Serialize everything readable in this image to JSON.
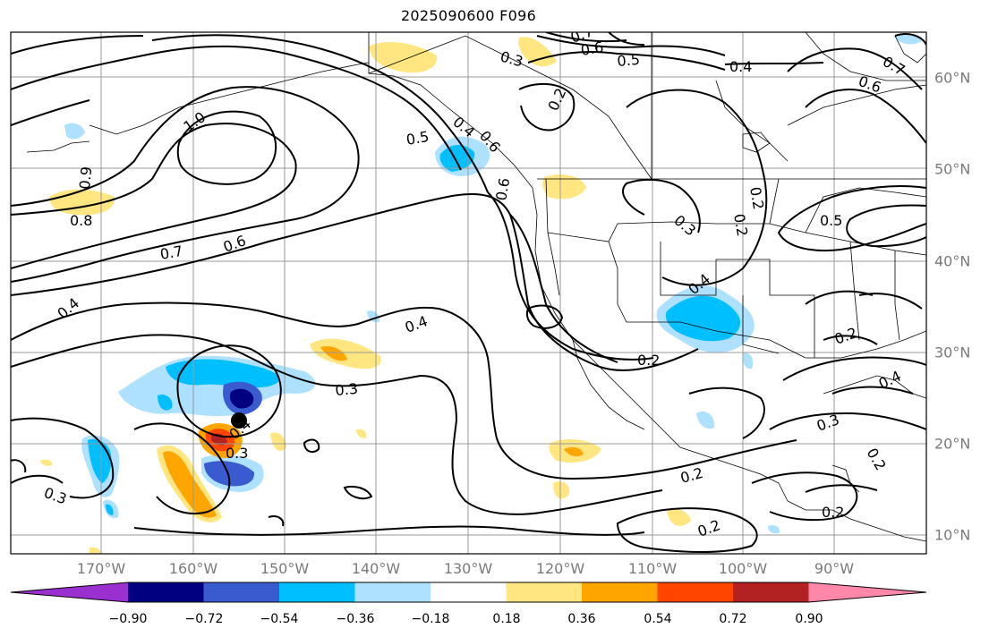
{
  "title": "2025090600 F096",
  "lon_labels": [
    "170°W",
    "160°W",
    "150°W",
    "140°W",
    "130°W",
    "120°W",
    "110°W",
    "100°W",
    "90°W"
  ],
  "lat_labels": [
    "60°N",
    "50°N",
    "40°N",
    "30°N",
    "20°N",
    "10°N"
  ],
  "colorbar": {
    "ticks": [
      "−0.90",
      "−0.72",
      "−0.54",
      "−0.36",
      "−0.18",
      "0.18",
      "0.36",
      "0.54",
      "0.72",
      "0.90"
    ],
    "colors": [
      "#9b30d0",
      "#000080",
      "#3a5bd0",
      "#00bfff",
      "#aee1ff",
      "#ffffff",
      "#ffe680",
      "#ffa500",
      "#ff4500",
      "#b22222",
      "#ff88aa"
    ]
  },
  "contour_labels": [
    "0.7",
    "0.6",
    "0.5",
    "0.4",
    "0.3",
    "0.6",
    "0.2",
    "0.6",
    "0.7",
    "1.0",
    "0.9",
    "0.8",
    "0.7",
    "0.6",
    "0.5",
    "0.4",
    "0.6",
    "0.2",
    "0.3",
    "0.5",
    "0.4",
    "0.2",
    "0.4",
    "0.4",
    "0.2",
    "0.2",
    "0.3",
    "0.4",
    "0.3",
    "0.4",
    "0.3",
    "0.3",
    "0.2",
    "0.2",
    "0.2",
    "0.2"
  ],
  "storm_marker": {
    "lon": -155.5,
    "lat": 22.5
  }
}
